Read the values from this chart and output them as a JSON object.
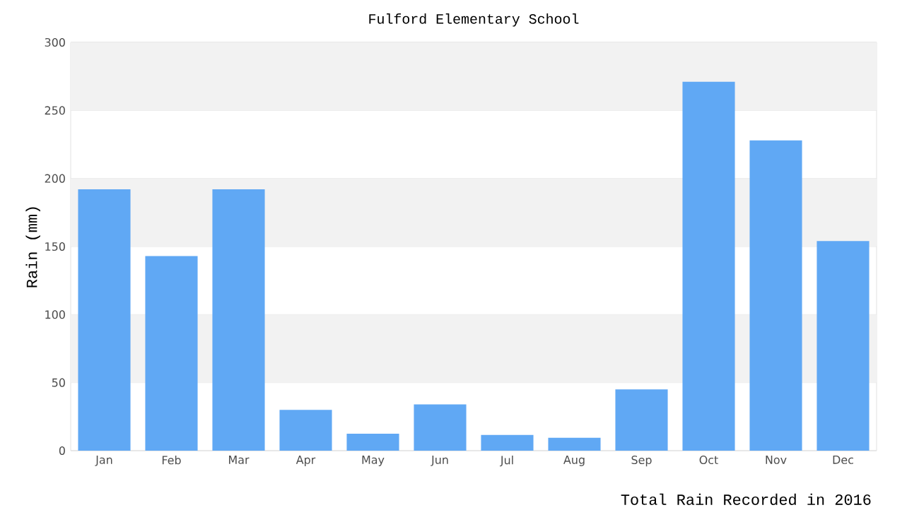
{
  "chart_data": {
    "type": "bar",
    "title": "Fulford Elementary School",
    "ylabel": "Rain (mm)",
    "categories": [
      "Jan",
      "Feb",
      "Mar",
      "Apr",
      "May",
      "Jun",
      "Jul",
      "Aug",
      "Sep",
      "Oct",
      "Nov",
      "Dec"
    ],
    "values": [
      192,
      143,
      192,
      30,
      12.5,
      34,
      11.5,
      9.5,
      45,
      271,
      228,
      154
    ],
    "color": "#60a8f4",
    "ylim": [
      0,
      300
    ],
    "yticks": [
      0,
      50,
      100,
      150,
      200,
      250,
      300
    ],
    "grid": true,
    "annotations": [
      "Total Rain Recorded in 2016"
    ]
  }
}
